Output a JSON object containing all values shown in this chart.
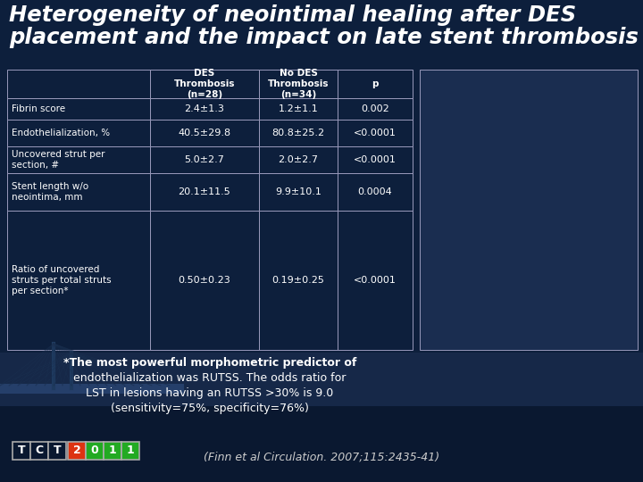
{
  "title_line1": "Heterogeneity of neointimal healing after DES",
  "title_line2": "placement and the impact on late stent thrombosis",
  "bg_color": "#0d1f3c",
  "table_header": [
    "DES\nThrombosis\n(n=28)",
    "No DES\nThrombosis\n(n=34)",
    "p"
  ],
  "row_labels": [
    "Fibrin score",
    "Endothelialization, %",
    "Uncovered strut per\nsection, #",
    "Stent length w/o\nneointima, mm",
    "Ratio of uncovered\nstruts per total struts\nper section*"
  ],
  "col1_values": [
    "2.4±1.3",
    "40.5±29.8",
    "5.0±2.7",
    "20.1±11.5",
    "0.50±0.23"
  ],
  "col2_values": [
    "1.2±1.1",
    "80.8±25.2",
    "2.0±2.7",
    "9.9±10.1",
    "0.19±0.25"
  ],
  "col3_values": [
    "0.002",
    "<0.0001",
    "<0.0001",
    "0.0004",
    "<0.0001"
  ],
  "footnote_lines": [
    "*The most powerful morphometric predictor of",
    "endothelialization was RUTSS. The odds ratio for",
    "LST in lesions having an RUTSS >30% is 9.0",
    "(sensitivity=75%, specificity=76%)"
  ],
  "footnote_bold": [
    true,
    false,
    false,
    false
  ],
  "citation": "(Finn et al Circulation. 2007;115:2435-41)",
  "table_bg": "#0d1f3c",
  "header_bg": "#0d1f3c",
  "border_color": "#9999bb",
  "text_color": "#ffffff",
  "title_color": "#ffffff",
  "footnote_color": "#ffffff",
  "citation_color": "#cccccc",
  "bottom_bar_color": "#0a1830",
  "tct_letters": [
    "T",
    "C",
    "T"
  ],
  "tct_digit_chars": [
    "2",
    "0",
    "1",
    "1"
  ],
  "tct_digit_colors": [
    "#dd3311",
    "#22aa22",
    "#22aa22",
    "#22aa22"
  ],
  "tct_box_border": "#aaaaaa"
}
